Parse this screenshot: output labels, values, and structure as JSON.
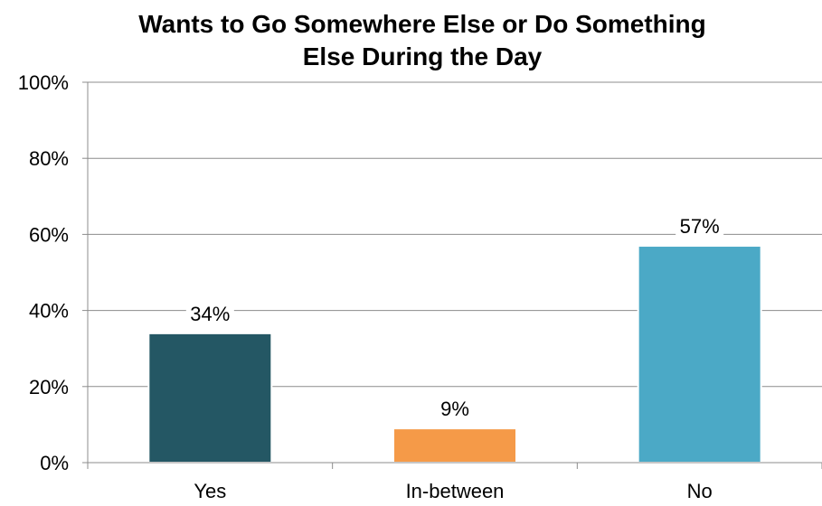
{
  "chart_data": {
    "type": "bar",
    "title_lines": [
      "Wants to Go Somewhere Else or Do Something",
      "Else During the Day"
    ],
    "categories": [
      "Yes",
      "In-between",
      "No"
    ],
    "values": [
      34,
      9,
      57
    ],
    "data_labels": [
      "34%",
      "9%",
      "57%"
    ],
    "colors": [
      "#245764",
      "#f59a48",
      "#4ba9c6"
    ],
    "ylim": [
      0,
      100
    ],
    "yticks": [
      0,
      20,
      40,
      60,
      80,
      100
    ],
    "ytick_labels": [
      "0%",
      "20%",
      "40%",
      "60%",
      "80%",
      "100%"
    ],
    "grid": true,
    "legend": "none",
    "xlabel": "",
    "ylabel": ""
  }
}
